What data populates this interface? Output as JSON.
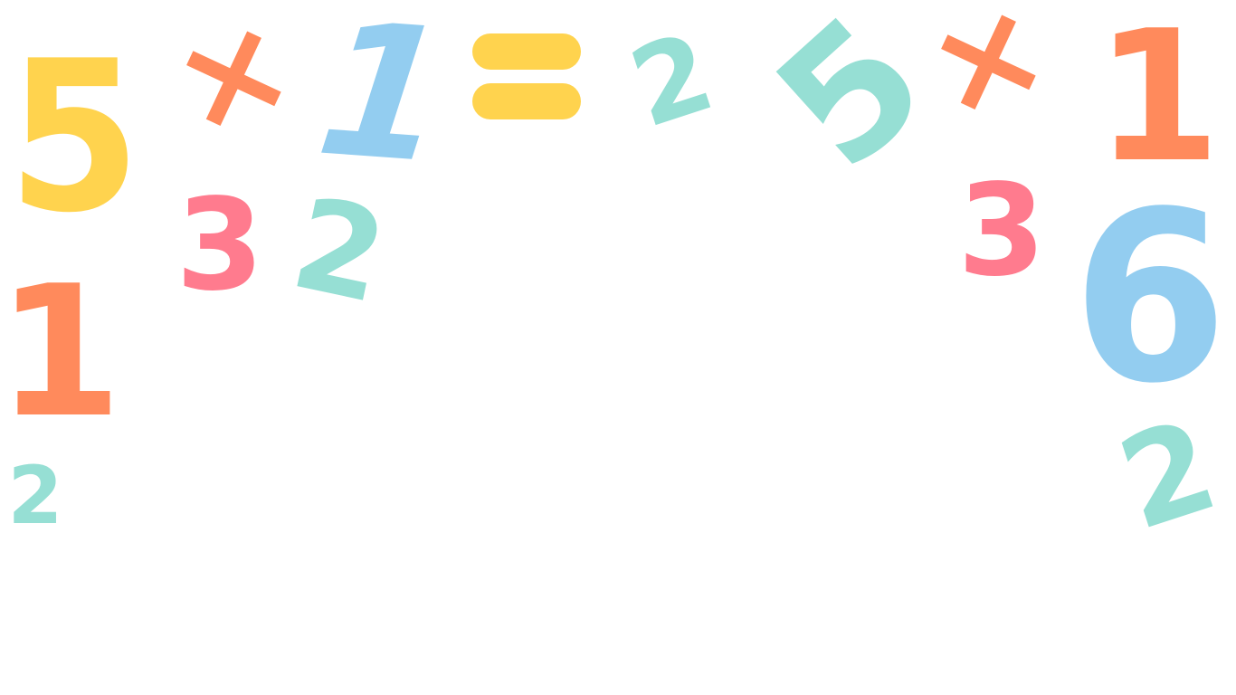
{
  "scene": {
    "digits": {
      "five_yellow": "5",
      "times_left": "×",
      "one_blue": "1",
      "two_top_mid": "2",
      "five_teal": "5",
      "times_right": "×",
      "one_orange_right": "1",
      "three_pink_left": "3",
      "two_teal_left": "2",
      "three_pink_right": "3",
      "six_blue": "6",
      "one_orange_left": "1",
      "two_small_left": "2",
      "two_teal_right": "2"
    },
    "equals_symbol": "="
  },
  "colors": {
    "yellow": "#ffd34e",
    "orange": "#ff8a5c",
    "blue": "#93cdf0",
    "teal": "#96dfd4",
    "pink": "#ff7b8e"
  }
}
